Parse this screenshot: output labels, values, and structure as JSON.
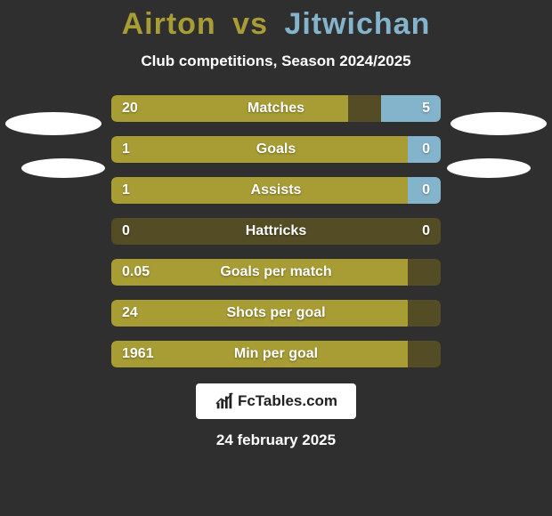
{
  "colors": {
    "background": "#2f2f2f",
    "player1": "#a89c34",
    "player2": "#84b4cc",
    "track": "#544c24"
  },
  "title": {
    "player1": "Airton",
    "vs": "vs",
    "player2": "Jitwichan"
  },
  "subtitle": "Club competitions, Season 2024/2025",
  "rows": [
    {
      "label": "Matches",
      "left": "20",
      "right": "5",
      "leftPct": 72,
      "rightPct": 18
    },
    {
      "label": "Goals",
      "left": "1",
      "right": "0",
      "leftPct": 90,
      "rightPct": 10
    },
    {
      "label": "Assists",
      "left": "1",
      "right": "0",
      "leftPct": 90,
      "rightPct": 10
    },
    {
      "label": "Hattricks",
      "left": "0",
      "right": "0",
      "leftPct": 0,
      "rightPct": 0
    },
    {
      "label": "Goals per match",
      "left": "0.05",
      "right": "",
      "leftPct": 90,
      "rightPct": 0
    },
    {
      "label": "Shots per goal",
      "left": "24",
      "right": "",
      "leftPct": 90,
      "rightPct": 0
    },
    {
      "label": "Min per goal",
      "left": "1961",
      "right": "",
      "leftPct": 90,
      "rightPct": 0
    }
  ],
  "brand": "FcTables.com",
  "date": "24 february 2025"
}
